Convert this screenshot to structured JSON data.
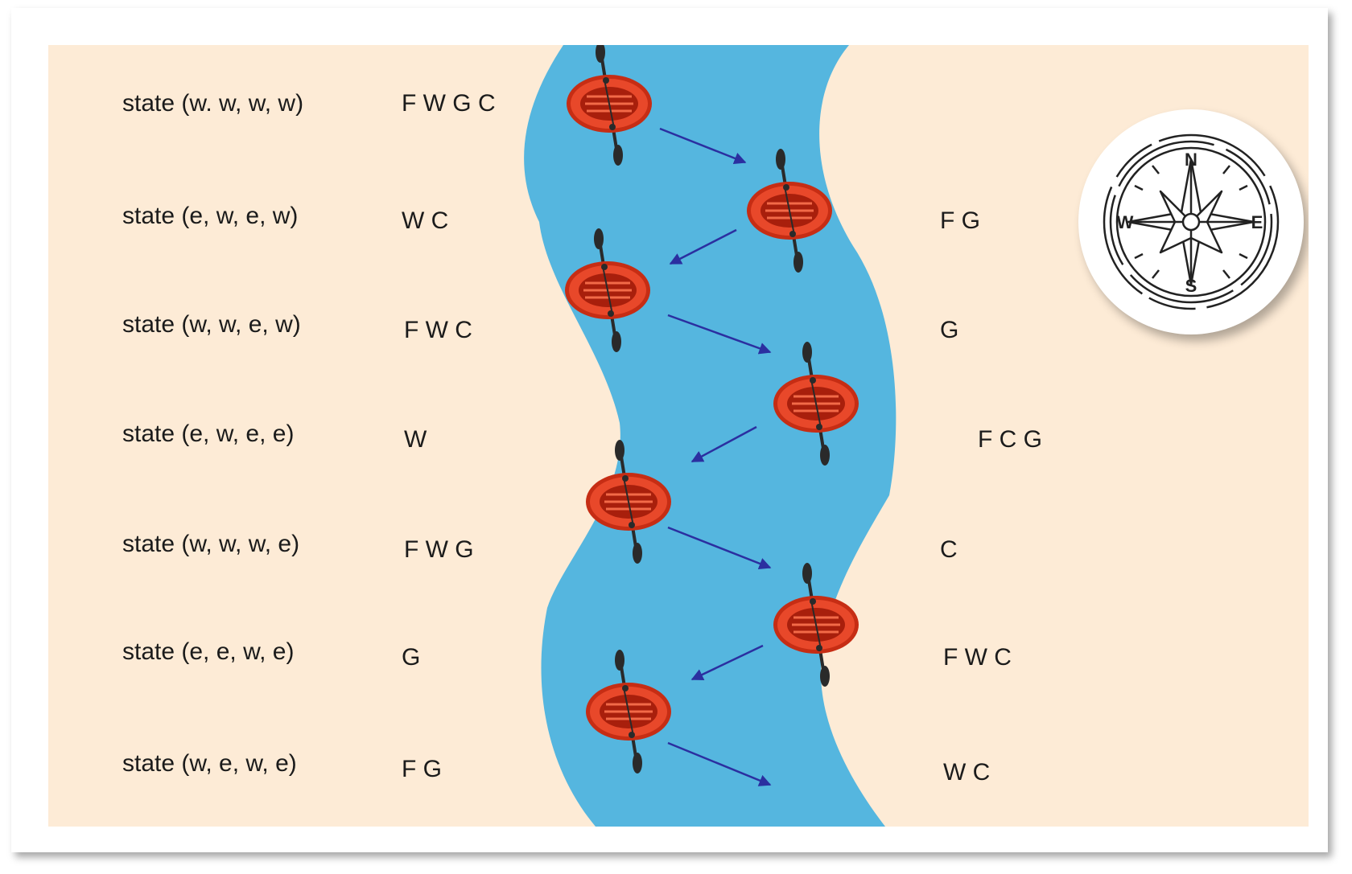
{
  "colors": {
    "sand": "#fdebd6",
    "river": "#55b6df",
    "boat": "#e0401f",
    "arrow": "#2b2fa0"
  },
  "rows": [
    {
      "state": "state (w. w, w, w)",
      "west": "F W G C",
      "east": ""
    },
    {
      "state": "state (e, w, e, w)",
      "west": "W C",
      "east": "F G"
    },
    {
      "state": "state (w, w, e, w)",
      "west": "F W C",
      "east": "G"
    },
    {
      "state": "state (e, w, e, e)",
      "west": "W",
      "east": "F C G"
    },
    {
      "state": "state (w, w, w, e)",
      "west": "F W G",
      "east": "C"
    },
    {
      "state": "state (e, e, w, e)",
      "west": "G",
      "east": "F W C"
    },
    {
      "state": "state (w, e, w, e)",
      "west": "F G",
      "east": "W C"
    }
  ],
  "compass": {
    "north": "N",
    "south": "S",
    "east": "E",
    "west": "W",
    "icon": "compass-rose-icon"
  },
  "boat_icon": "inflatable-raft-icon"
}
